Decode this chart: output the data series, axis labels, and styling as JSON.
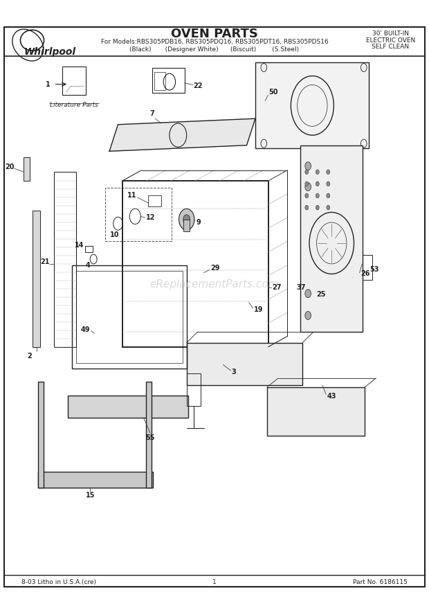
{
  "title": "OVEN PARTS",
  "subtitle_line1": "For Models:RBS305PDB16, RBS305PDQ16, RBS305PDT16, RBS305PDS16",
  "subtitle_line2": "(Black)       (Designer White)      (Biscuit)        (S.Steel)",
  "top_right_line1": "30' BUILT-IN",
  "top_right_line2": "ELECTRIC OVEN",
  "top_right_line3": "SELF CLEAN",
  "brand": "Whirlpool",
  "footer_left": "8-03 Litho in U.S.A.(cre)",
  "footer_center": "1",
  "footer_right": "Part No. 6186115",
  "watermark": "eReplacementParts.com",
  "bg_color": "#ffffff",
  "line_color": "#222222",
  "label_color": "#111111",
  "literature_label": "Literature Parts"
}
